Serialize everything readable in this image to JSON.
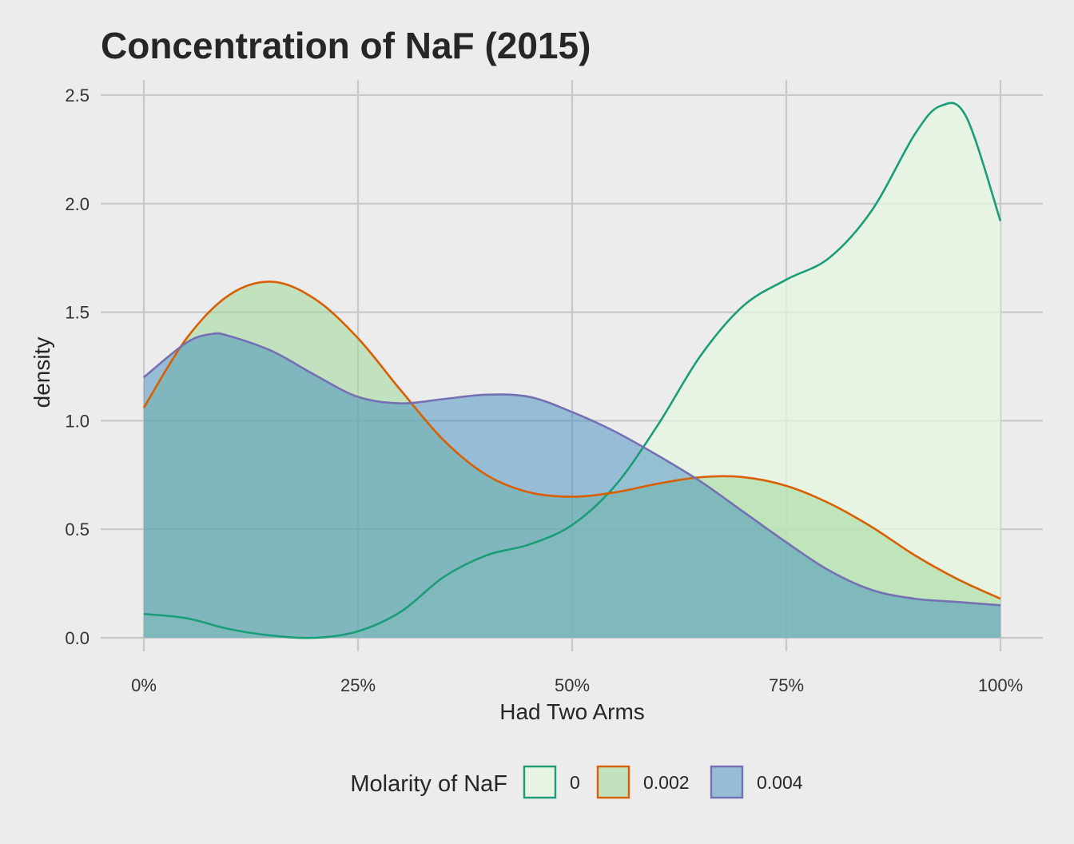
{
  "chart_data": {
    "type": "area",
    "title": "Concentration of NaF (2015)",
    "xlabel": "Had Two Arms",
    "ylabel": "density",
    "xlim": [
      0,
      100
    ],
    "ylim": [
      0,
      2.5
    ],
    "x_ticks": [
      {
        "value": 0,
        "label": "0%"
      },
      {
        "value": 25,
        "label": "25%"
      },
      {
        "value": 50,
        "label": "50%"
      },
      {
        "value": 75,
        "label": "75%"
      },
      {
        "value": 100,
        "label": "100%"
      }
    ],
    "y_ticks": [
      {
        "value": 0,
        "label": "0.0"
      },
      {
        "value": 0.5,
        "label": "0.5"
      },
      {
        "value": 1.0,
        "label": "1.0"
      },
      {
        "value": 1.5,
        "label": "1.5"
      },
      {
        "value": 2.0,
        "label": "2.0"
      },
      {
        "value": 2.5,
        "label": "2.5"
      }
    ],
    "grid": true,
    "legend": {
      "title": "Molarity of NaF",
      "position": "bottom"
    },
    "series": [
      {
        "name": "0",
        "line_color": "#1b9e77",
        "fill_color": "#e5f5e0",
        "fill_opacity": 0.75,
        "x": [
          0,
          5,
          10,
          15,
          20,
          25,
          30,
          35,
          40,
          45,
          50,
          55,
          60,
          65,
          70,
          75,
          80,
          85,
          90,
          93,
          96,
          100
        ],
        "y": [
          0.11,
          0.09,
          0.04,
          0.01,
          0.0,
          0.03,
          0.12,
          0.28,
          0.38,
          0.43,
          0.52,
          0.7,
          0.98,
          1.3,
          1.53,
          1.65,
          1.75,
          1.97,
          2.32,
          2.45,
          2.4,
          1.92
        ]
      },
      {
        "name": "0.002",
        "line_color": "#d95f02",
        "fill_color": "#a1d99b",
        "fill_opacity": 0.55,
        "x": [
          0,
          5,
          10,
          15,
          20,
          25,
          30,
          35,
          40,
          45,
          50,
          55,
          60,
          65,
          70,
          75,
          80,
          85,
          90,
          95,
          100
        ],
        "y": [
          1.06,
          1.38,
          1.58,
          1.64,
          1.56,
          1.38,
          1.14,
          0.91,
          0.75,
          0.67,
          0.65,
          0.67,
          0.71,
          0.74,
          0.74,
          0.7,
          0.62,
          0.51,
          0.38,
          0.27,
          0.18
        ]
      },
      {
        "name": "0.004",
        "line_color": "#7570b3",
        "fill_color": "#3182bd",
        "fill_opacity": 0.45,
        "x": [
          0,
          5,
          8,
          10,
          15,
          20,
          25,
          30,
          35,
          40,
          45,
          50,
          55,
          60,
          65,
          70,
          75,
          80,
          85,
          90,
          95,
          100
        ],
        "y": [
          1.2,
          1.36,
          1.4,
          1.39,
          1.32,
          1.21,
          1.11,
          1.08,
          1.1,
          1.12,
          1.11,
          1.04,
          0.95,
          0.84,
          0.72,
          0.58,
          0.44,
          0.31,
          0.22,
          0.18,
          0.165,
          0.15
        ]
      }
    ]
  }
}
